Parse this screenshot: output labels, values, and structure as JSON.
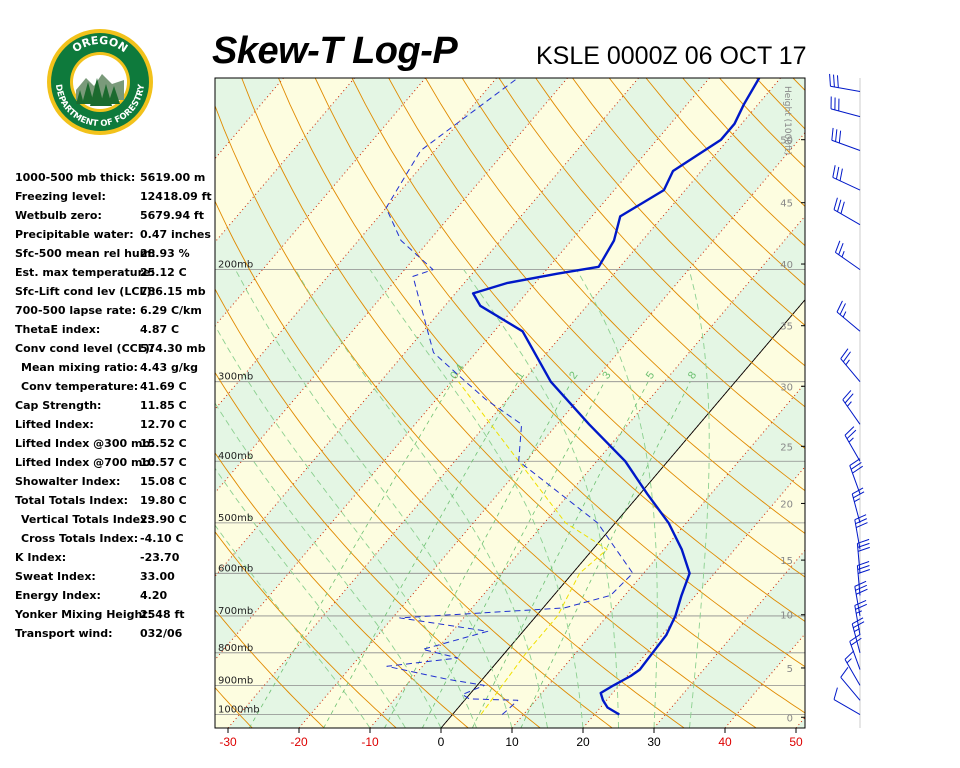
{
  "header": {
    "title": "Skew-T Log-P",
    "station_time": "KSLE 0000Z 06 OCT 17"
  },
  "logo": {
    "top_text": "OREGON",
    "bottom_text": "DEPARTMENT OF FORESTRY",
    "colors": {
      "ring": "#0e7a3c",
      "outer": "#f2c21b",
      "tree": "#1c6a2e",
      "sky": "#ffffff"
    }
  },
  "indices": [
    {
      "label": "1000-500 mb thick:",
      "value": "5619.00 m"
    },
    {
      "label": "Freezing level:",
      "value": "12418.09 ft"
    },
    {
      "label": "Wetbulb zero:",
      "value": "5679.94 ft"
    },
    {
      "label": "Precipitable water:",
      "value": "0.47 inches"
    },
    {
      "label": "Sfc-500 mean rel hum:",
      "value": "28.93 %"
    },
    {
      "label": "Est. max temperature:",
      "value": "25.12 C"
    },
    {
      "label": "Sfc-Lift cond lev (LCL):",
      "value": "786.15 mb"
    },
    {
      "label": "700-500 lapse rate:",
      "value": "6.29 C/km"
    },
    {
      "label": "ThetaE index:",
      "value": "4.87 C"
    },
    {
      "label": "Conv cond level (CCL):",
      "value": "574.30 mb"
    },
    {
      "label": "Mean mixing ratio:",
      "value": "4.43 g/kg",
      "indent": true
    },
    {
      "label": "Conv temperature:",
      "value": "41.69 C",
      "indent": true
    },
    {
      "label": "Cap Strength:",
      "value": "11.85 C"
    },
    {
      "label": "Lifted Index:",
      "value": "12.70 C"
    },
    {
      "label": "Lifted Index @300 mb:",
      "value": "15.52 C"
    },
    {
      "label": "Lifted Index @700 mb:",
      "value": "10.57 C"
    },
    {
      "label": "Showalter Index:",
      "value": "15.08 C"
    },
    {
      "label": "Total Totals Index:",
      "value": "19.80 C"
    },
    {
      "label": "Vertical Totals Index:",
      "value": "23.90 C",
      "indent": true
    },
    {
      "label": "Cross Totals Index:",
      "value": "-4.10 C",
      "indent": true
    },
    {
      "label": "K Index:",
      "value": "-23.70"
    },
    {
      "label": "Sweat Index:",
      "value": "33.00"
    },
    {
      "label": "Energy Index:",
      "value": "4.20"
    },
    {
      "label": "Yonker Mixing Height:",
      "value": "2548 ft"
    },
    {
      "label": "Transport wind:",
      "value": "032/06"
    }
  ],
  "chart_data": {
    "type": "skew-t",
    "x_ticks": [
      -30,
      -20,
      -10,
      0,
      10,
      20,
      30,
      40,
      50
    ],
    "x_tick_colors": {
      "negative": "#dd0000",
      "zero_to_30": "#000000",
      "above_30": "#dd0000"
    },
    "pressure_labels": [
      {
        "p": 1000,
        "label": "1000mb"
      },
      {
        "p": 900,
        "label": "900mb"
      },
      {
        "p": 800,
        "label": "800mb"
      },
      {
        "p": 700,
        "label": "700mb"
      },
      {
        "p": 600,
        "label": "600mb"
      },
      {
        "p": 500,
        "label": "500mb"
      },
      {
        "p": 400,
        "label": "400mb"
      },
      {
        "p": 300,
        "label": "300mb"
      },
      {
        "p": 200,
        "label": "200mb"
      }
    ],
    "height_axis": {
      "title": "Height (1000ft)",
      "ticks": [
        {
          "p": 1010,
          "label": "0"
        },
        {
          "p": 845,
          "label": "5"
        },
        {
          "p": 697,
          "label": "10"
        },
        {
          "p": 572,
          "label": "15"
        },
        {
          "p": 466,
          "label": "20"
        },
        {
          "p": 379,
          "label": "25"
        },
        {
          "p": 305,
          "label": "30"
        },
        {
          "p": 245,
          "label": "35"
        },
        {
          "p": 196,
          "label": "40"
        },
        {
          "p": 157,
          "label": "45"
        },
        {
          "p": 125,
          "label": "50"
        }
      ]
    },
    "mixing_ratio_labels": [
      "0.4",
      "1",
      "2",
      "3",
      "5",
      "8"
    ],
    "temperature": [
      {
        "p": 1000,
        "t": 23.5
      },
      {
        "p": 975,
        "t": 21.0
      },
      {
        "p": 950,
        "t": 19.5
      },
      {
        "p": 925,
        "t": 18.3
      },
      {
        "p": 900,
        "t": 19.2
      },
      {
        "p": 870,
        "t": 20.5
      },
      {
        "p": 850,
        "t": 21.0
      },
      {
        "p": 800,
        "t": 20.8
      },
      {
        "p": 750,
        "t": 20.6
      },
      {
        "p": 700,
        "t": 19.6
      },
      {
        "p": 650,
        "t": 18.0
      },
      {
        "p": 600,
        "t": 16.5
      },
      {
        "p": 550,
        "t": 12.5
      },
      {
        "p": 500,
        "t": 7.5
      },
      {
        "p": 450,
        "t": 1.0
      },
      {
        "p": 400,
        "t": -6.0
      },
      {
        "p": 350,
        "t": -15.5
      },
      {
        "p": 300,
        "t": -26.0
      },
      {
        "p": 250,
        "t": -36.0
      },
      {
        "p": 228,
        "t": -45.0
      },
      {
        "p": 218,
        "t": -47.5
      },
      {
        "p": 210,
        "t": -44.0
      },
      {
        "p": 203,
        "t": -38.0
      },
      {
        "p": 198,
        "t": -33.0
      },
      {
        "p": 180,
        "t": -34.0
      },
      {
        "p": 165,
        "t": -36.0
      },
      {
        "p": 150,
        "t": -33.0
      },
      {
        "p": 140,
        "t": -34.0
      },
      {
        "p": 125,
        "t": -31.0
      },
      {
        "p": 118,
        "t": -31.0
      },
      {
        "p": 110,
        "t": -32.0
      },
      {
        "p": 100,
        "t": -33.0
      }
    ],
    "dewpoint": [
      {
        "p": 1000,
        "t": 7.0
      },
      {
        "p": 985,
        "t": 7.2
      },
      {
        "p": 950,
        "t": 7.5
      },
      {
        "p": 945,
        "t": 0.5
      },
      {
        "p": 930,
        "t": -1.0
      },
      {
        "p": 900,
        "t": 1.0
      },
      {
        "p": 880,
        "t": -5.0
      },
      {
        "p": 840,
        "t": -15.0
      },
      {
        "p": 815,
        "t": -6.0
      },
      {
        "p": 790,
        "t": -12.0
      },
      {
        "p": 740,
        "t": -5.0
      },
      {
        "p": 705,
        "t": -19.0
      },
      {
        "p": 680,
        "t": 3.0
      },
      {
        "p": 650,
        "t": 8.0
      },
      {
        "p": 600,
        "t": 8.5
      },
      {
        "p": 500,
        "t": -2.5
      },
      {
        "p": 400,
        "t": -21.0
      },
      {
        "p": 350,
        "t": -25.0
      },
      {
        "p": 320,
        "t": -33.0
      },
      {
        "p": 300,
        "t": -38.0
      },
      {
        "p": 270,
        "t": -46.0
      },
      {
        "p": 230,
        "t": -53.0
      },
      {
        "p": 205,
        "t": -58.0
      },
      {
        "p": 200,
        "t": -56.0
      },
      {
        "p": 180,
        "t": -64.0
      },
      {
        "p": 160,
        "t": -70.0
      },
      {
        "p": 130,
        "t": -72.0
      },
      {
        "p": 100,
        "t": -67.0
      }
    ],
    "parcel": [
      {
        "p": 1000,
        "t": 4.0
      },
      {
        "p": 800,
        "t": 3.0
      },
      {
        "p": 700,
        "t": 3.0
      },
      {
        "p": 600,
        "t": 1.0
      },
      {
        "p": 550,
        "t": 2.0
      },
      {
        "p": 500,
        "t": -7.0
      },
      {
        "p": 400,
        "t": -21.0
      },
      {
        "p": 300,
        "t": -39.0
      }
    ],
    "colors": {
      "temperature": "#0018c8",
      "dewpoint": "#2030d0",
      "parcel": "#f0e000",
      "isotherm": "#cc2200",
      "dry_adiabat": "#e08a00",
      "moist_adiabat": "#8cd090",
      "mixing_ratio": "#6cc070",
      "isobar": "#8c8c8c",
      "band_green": "#e4f6e4",
      "band_yellow": "#fdfde0"
    },
    "winds": [
      {
        "p": 1000,
        "dir": 300,
        "kt": 10
      },
      {
        "p": 950,
        "dir": 320,
        "kt": 10
      },
      {
        "p": 900,
        "dir": 330,
        "kt": 15
      },
      {
        "p": 850,
        "dir": 340,
        "kt": 20
      },
      {
        "p": 800,
        "dir": 345,
        "kt": 25
      },
      {
        "p": 750,
        "dir": 350,
        "kt": 25
      },
      {
        "p": 700,
        "dir": 350,
        "kt": 30
      },
      {
        "p": 650,
        "dir": 355,
        "kt": 30
      },
      {
        "p": 600,
        "dir": 355,
        "kt": 30
      },
      {
        "p": 550,
        "dir": 350,
        "kt": 30
      },
      {
        "p": 500,
        "dir": 345,
        "kt": 25
      },
      {
        "p": 450,
        "dir": 340,
        "kt": 30
      },
      {
        "p": 400,
        "dir": 330,
        "kt": 25
      },
      {
        "p": 350,
        "dir": 325,
        "kt": 25
      },
      {
        "p": 300,
        "dir": 320,
        "kt": 25
      },
      {
        "p": 250,
        "dir": 310,
        "kt": 25
      },
      {
        "p": 200,
        "dir": 305,
        "kt": 25
      },
      {
        "p": 170,
        "dir": 300,
        "kt": 30
      },
      {
        "p": 150,
        "dir": 295,
        "kt": 30
      },
      {
        "p": 130,
        "dir": 290,
        "kt": 30
      },
      {
        "p": 115,
        "dir": 285,
        "kt": 30
      },
      {
        "p": 105,
        "dir": 280,
        "kt": 30
      }
    ]
  }
}
